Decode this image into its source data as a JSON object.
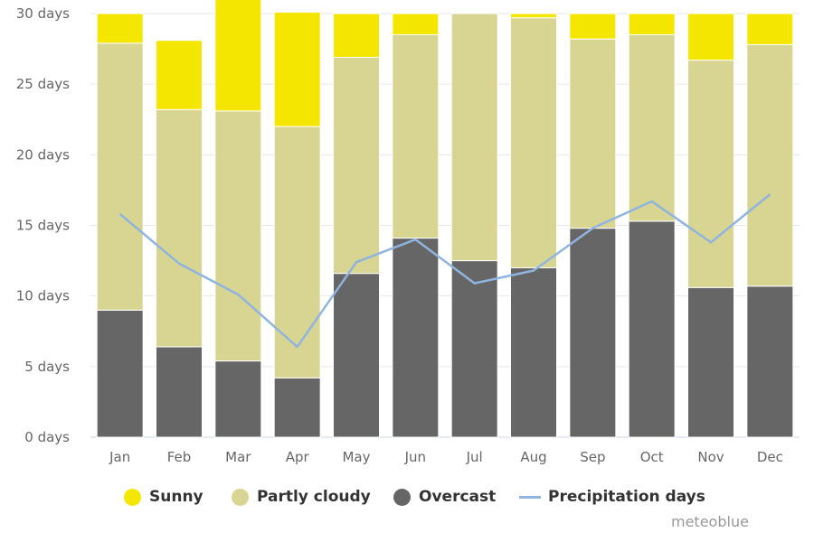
{
  "chart_data": {
    "type": "bar",
    "stacked": true,
    "categories": [
      "Jan",
      "Feb",
      "Mar",
      "Apr",
      "May",
      "Jun",
      "Jul",
      "Aug",
      "Sep",
      "Oct",
      "Nov",
      "Dec"
    ],
    "series": [
      {
        "name": "Overcast",
        "kind": "bar",
        "color": "#666666",
        "values": [
          9,
          6.4,
          5.4,
          4.2,
          11.6,
          14.1,
          12.5,
          12.0,
          14.8,
          15.3,
          10.6,
          10.7
        ]
      },
      {
        "name": "Partly cloudy",
        "kind": "bar",
        "color": "#d8d592",
        "values": [
          18.9,
          16.8,
          17.7,
          17.8,
          15.3,
          14.4,
          17.5,
          17.7,
          13.4,
          13.2,
          16.1,
          17.1
        ]
      },
      {
        "name": "Sunny",
        "kind": "bar",
        "color": "#f5e600",
        "values": [
          2.1,
          4.9,
          7.9,
          8.1,
          3.1,
          1.5,
          0,
          0.3,
          1.8,
          1.5,
          3.3,
          2.2
        ]
      },
      {
        "name": "Precipitation days",
        "kind": "line",
        "color": "#8fb4df",
        "values": [
          15.8,
          12.3,
          10.1,
          6.4,
          12.4,
          14.0,
          10.9,
          11.8,
          14.8,
          16.7,
          13.8,
          17.2
        ]
      }
    ],
    "ylim": [
      0,
      30
    ],
    "yticks": [
      0,
      5,
      10,
      15,
      20,
      25,
      30
    ],
    "ytick_labels": [
      "0 days",
      "5 days",
      "10 days",
      "15 days",
      "20 days",
      "25 days",
      "30 days"
    ],
    "grid": true,
    "legend_position": "bottom"
  },
  "legend": {
    "items": [
      {
        "label": "Sunny",
        "color": "#f5e600",
        "shape": "circle"
      },
      {
        "label": "Partly cloudy",
        "color": "#d8d592",
        "shape": "circle"
      },
      {
        "label": "Overcast",
        "color": "#666666",
        "shape": "circle"
      },
      {
        "label": "Precipitation days",
        "color": "#8fb4df",
        "shape": "line"
      }
    ]
  },
  "credit": "meteoblue"
}
